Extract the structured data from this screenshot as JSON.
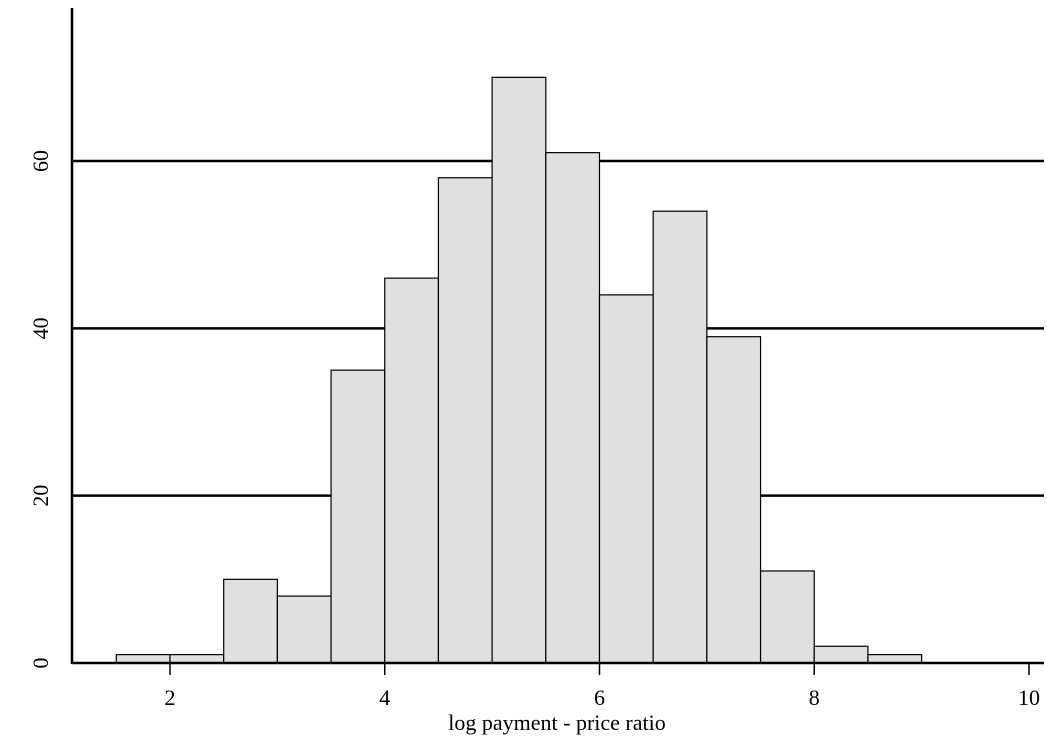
{
  "chart_data": {
    "type": "bar",
    "subtype": "histogram",
    "bin_edges": [
      1.5,
      2.0,
      2.5,
      3.0,
      3.5,
      4.0,
      4.5,
      5.0,
      5.5,
      6.0,
      6.5,
      7.0,
      7.5,
      8.0,
      8.5,
      9.0
    ],
    "values": [
      1,
      1,
      10,
      8,
      35,
      46,
      58,
      70,
      61,
      44,
      54,
      39,
      11,
      2,
      1
    ],
    "xlabel": "log payment - price ratio",
    "ylabel": "",
    "xlim": [
      1,
      10
    ],
    "ylim": [
      0,
      70
    ],
    "x_ticks": [
      "2",
      "4",
      "6",
      "8",
      "10"
    ],
    "y_ticks": [
      "0",
      "20",
      "40",
      "60"
    ],
    "grid": "horizontal lines at 20, 40, 60",
    "colors": {
      "bar_fill": "#e0e0e0",
      "bar_stroke": "#000000",
      "grid": "#000000"
    }
  }
}
